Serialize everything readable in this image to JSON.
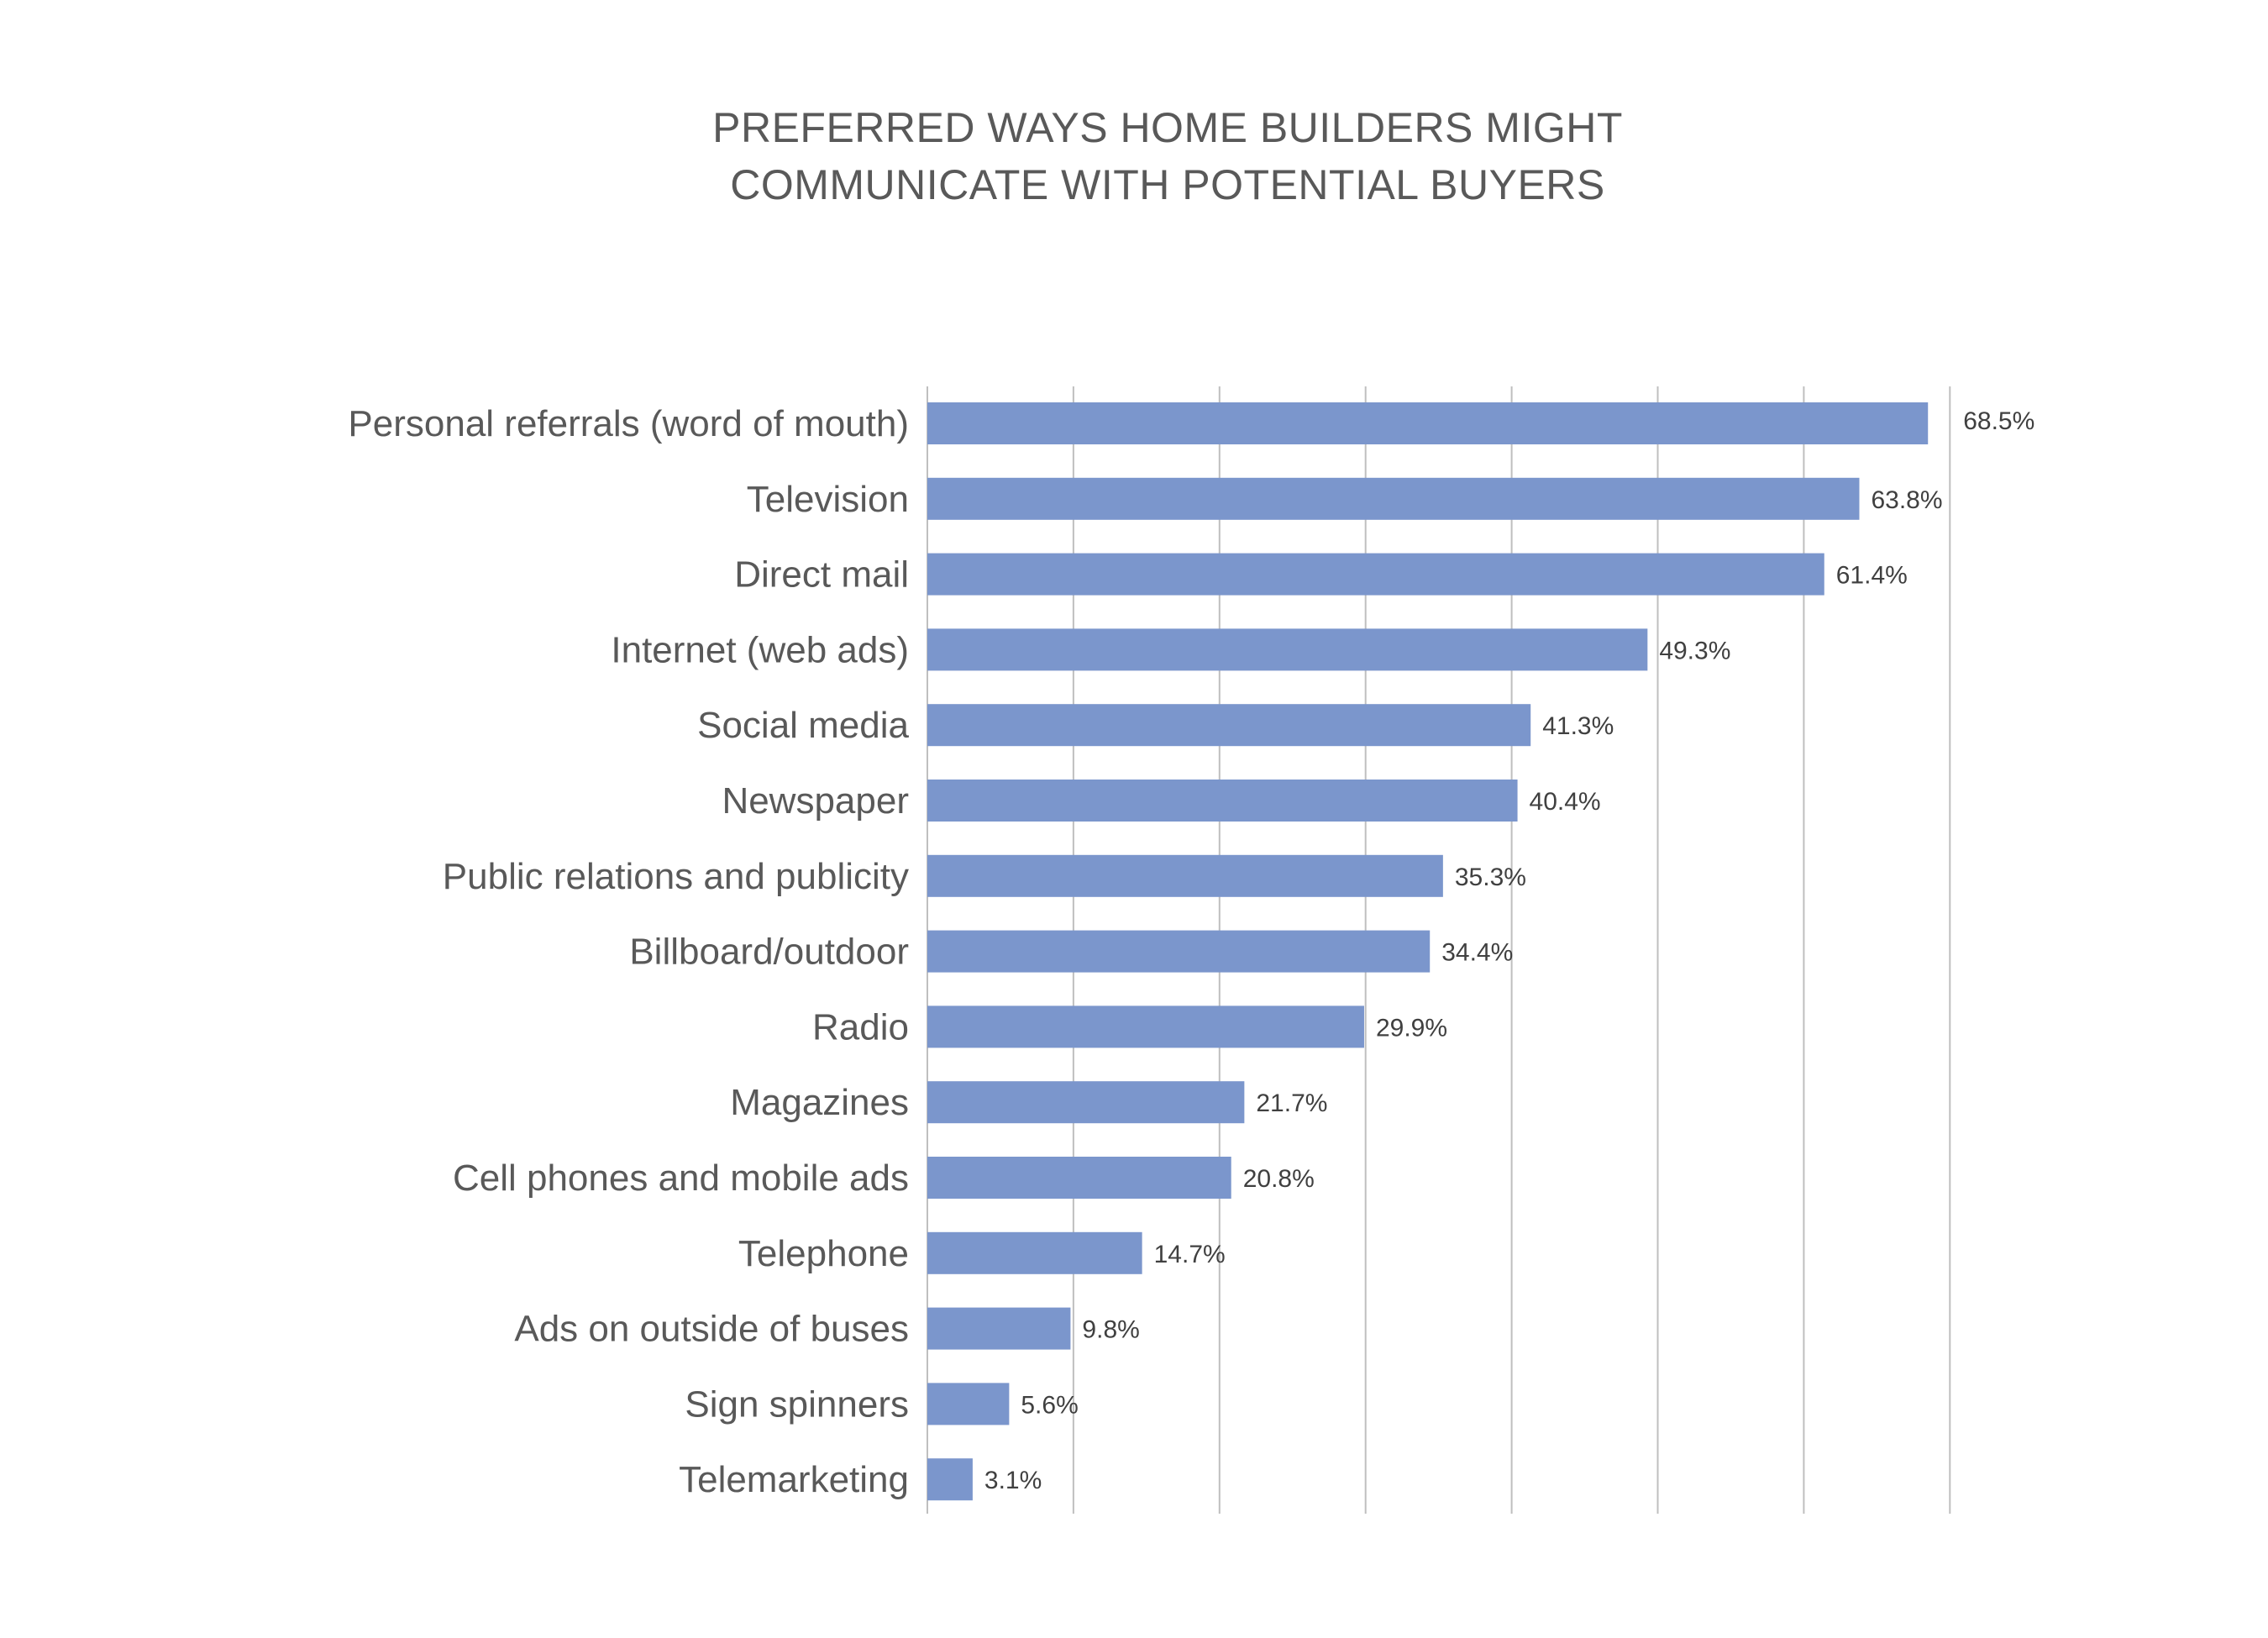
{
  "chart_data": {
    "type": "bar",
    "orientation": "horizontal",
    "title_lines": [
      "PREFERRED WAYS HOME BUILDERS MIGHT",
      "COMMUNICATE WITH POTENTIAL BUYERS"
    ],
    "categories": [
      "Personal referrals (word of mouth)",
      "Television",
      "Direct mail",
      "Internet (web ads)",
      "Social media",
      "Newspaper",
      "Public relations and publicity",
      "Billboard/outdoor",
      "Radio",
      "Magazines",
      "Cell phones and mobile ads",
      "Telephone",
      "Ads on outside of buses",
      "Sign spinners",
      "Telemarketing"
    ],
    "values": [
      68.5,
      63.8,
      61.4,
      49.3,
      41.3,
      40.4,
      35.3,
      34.4,
      29.9,
      21.7,
      20.8,
      14.7,
      9.8,
      5.6,
      3.1
    ],
    "value_labels": [
      "68.5%",
      "63.8%",
      "61.4%",
      "49.3%",
      "41.3%",
      "40.4%",
      "35.3%",
      "34.4%",
      "29.9%",
      "21.7%",
      "20.8%",
      "14.7%",
      "9.8%",
      "5.6%",
      "3.1%"
    ],
    "xlim": [
      0,
      70
    ],
    "grid": true,
    "legend": "none",
    "bar_color": "#7b96cc"
  }
}
